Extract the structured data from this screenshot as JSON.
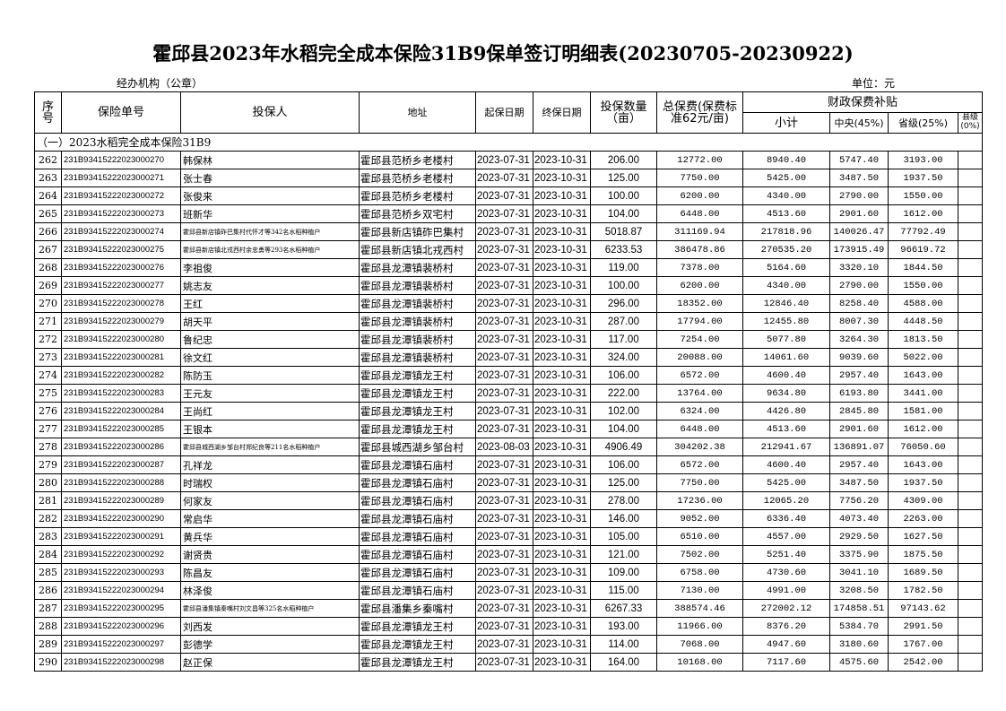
{
  "title": "霍邱县2023年水稻完全成本保险31B9保单签订明细表(20230705-20230922)",
  "subheader": {
    "agency": "经办机构（公章）",
    "unit": "单位：元"
  },
  "table": {
    "headers": {
      "seq": "序号",
      "policy_no": "保险单号",
      "insured": "投保人",
      "address": "地址",
      "start": "起保日期",
      "end": "终保日期",
      "quantity": "投保数量（亩）",
      "premium": "总保费(保费标准62元/亩)",
      "subsidy": "财政保费补贴",
      "subtotal": "小计",
      "central": "中央(45%)",
      "provincial": "省级(25%)",
      "county": "县级(0%)"
    },
    "section": "（一）2023水稻完全成本保险31B9",
    "rows": [
      [
        "262",
        "231B93415222023000270",
        "韩保林",
        "霍邱县范桥乡老楼村",
        "2023-07-31",
        "2023-10-31",
        "206.00",
        "12772.00",
        "8940.40",
        "5747.40",
        "3193.00"
      ],
      [
        "263",
        "231B93415222023000271",
        "张士春",
        "霍邱县范桥乡老楼村",
        "2023-07-31",
        "2023-10-31",
        "125.00",
        "7750.00",
        "5425.00",
        "3487.50",
        "1937.50"
      ],
      [
        "264",
        "231B93415222023000272",
        "张俊来",
        "霍邱县范桥乡老楼村",
        "2023-07-31",
        "2023-10-31",
        "100.00",
        "6200.00",
        "4340.00",
        "2790.00",
        "1550.00"
      ],
      [
        "265",
        "231B93415222023000273",
        "班新华",
        "霍邱县范桥乡双宅村",
        "2023-07-31",
        "2023-10-31",
        "104.00",
        "6448.00",
        "4513.60",
        "2901.60",
        "1612.00"
      ],
      [
        "266",
        "231B93415222023000274",
        "霍邱县新店镇砟巴集村代怀才等342名水稻种植户",
        "霍邱县新店镇砟巴集村",
        "2023-07-31",
        "2023-10-31",
        "5018.87",
        "311169.94",
        "217818.96",
        "140026.47",
        "77792.49"
      ],
      [
        "267",
        "231B93415222023000275",
        "霍邱县新店镇北戎西村余忠勇等293名水稻种植户",
        "霍邱县新店镇北戎西村",
        "2023-07-31",
        "2023-10-31",
        "6233.53",
        "386478.86",
        "270535.20",
        "173915.49",
        "96619.72"
      ],
      [
        "268",
        "231B93415222023000276",
        "李祖俊",
        "霍邱县龙潭镇裴桥村",
        "2023-07-31",
        "2023-10-31",
        "119.00",
        "7378.00",
        "5164.60",
        "3320.10",
        "1844.50"
      ],
      [
        "269",
        "231B93415222023000277",
        "姚志友",
        "霍邱县龙潭镇裴桥村",
        "2023-07-31",
        "2023-10-31",
        "100.00",
        "6200.00",
        "4340.00",
        "2790.00",
        "1550.00"
      ],
      [
        "270",
        "231B93415222023000278",
        "王红",
        "霍邱县龙潭镇裴桥村",
        "2023-07-31",
        "2023-10-31",
        "296.00",
        "18352.00",
        "12846.40",
        "8258.40",
        "4588.00"
      ],
      [
        "271",
        "231B93415222023000279",
        "胡天平",
        "霍邱县龙潭镇裴桥村",
        "2023-07-31",
        "2023-10-31",
        "287.00",
        "17794.00",
        "12455.80",
        "8007.30",
        "4448.50"
      ],
      [
        "272",
        "231B93415222023000280",
        "鲁纪忠",
        "霍邱县龙潭镇裴桥村",
        "2023-07-31",
        "2023-10-31",
        "117.00",
        "7254.00",
        "5077.80",
        "3264.30",
        "1813.50"
      ],
      [
        "273",
        "231B93415222023000281",
        "徐文红",
        "霍邱县龙潭镇裴桥村",
        "2023-07-31",
        "2023-10-31",
        "324.00",
        "20088.00",
        "14061.60",
        "9039.60",
        "5022.00"
      ],
      [
        "274",
        "231B93415222023000282",
        "陈防玉",
        "霍邱县龙潭镇龙王村",
        "2023-07-31",
        "2023-10-31",
        "106.00",
        "6572.00",
        "4600.40",
        "2957.40",
        "1643.00"
      ],
      [
        "275",
        "231B93415222023000283",
        "王元友",
        "霍邱县龙潭镇龙王村",
        "2023-07-31",
        "2023-10-31",
        "222.00",
        "13764.00",
        "9634.80",
        "6193.80",
        "3441.00"
      ],
      [
        "276",
        "231B93415222023000284",
        "王尚红",
        "霍邱县龙潭镇龙王村",
        "2023-07-31",
        "2023-10-31",
        "102.00",
        "6324.00",
        "4426.80",
        "2845.80",
        "1581.00"
      ],
      [
        "277",
        "231B93415222023000285",
        "王银本",
        "霍邱县龙潭镇龙王村",
        "2023-07-31",
        "2023-10-31",
        "104.00",
        "6448.00",
        "4513.60",
        "2901.60",
        "1612.00"
      ],
      [
        "278",
        "231B93415222023000286",
        "霍邱县城西湖乡邹台村郑纪良等211名水稻种植户",
        "霍邱县城西湖乡邹台村",
        "2023-08-03",
        "2023-10-31",
        "4906.49",
        "304202.38",
        "212941.67",
        "136891.07",
        "76050.60"
      ],
      [
        "279",
        "231B93415222023000287",
        "孔祥龙",
        "霍邱县龙潭镇石庙村",
        "2023-07-31",
        "2023-10-31",
        "106.00",
        "6572.00",
        "4600.40",
        "2957.40",
        "1643.00"
      ],
      [
        "280",
        "231B93415222023000288",
        "时瑞权",
        "霍邱县龙潭镇石庙村",
        "2023-07-31",
        "2023-10-31",
        "125.00",
        "7750.00",
        "5425.00",
        "3487.50",
        "1937.50"
      ],
      [
        "281",
        "231B93415222023000289",
        "何家友",
        "霍邱县龙潭镇石庙村",
        "2023-07-31",
        "2023-10-31",
        "278.00",
        "17236.00",
        "12065.20",
        "7756.20",
        "4309.00"
      ],
      [
        "282",
        "231B93415222023000290",
        "常启华",
        "霍邱县龙潭镇石庙村",
        "2023-07-31",
        "2023-10-31",
        "146.00",
        "9052.00",
        "6336.40",
        "4073.40",
        "2263.00"
      ],
      [
        "283",
        "231B93415222023000291",
        "黄兵华",
        "霍邱县龙潭镇石庙村",
        "2023-07-31",
        "2023-10-31",
        "105.00",
        "6510.00",
        "4557.00",
        "2929.50",
        "1627.50"
      ],
      [
        "284",
        "231B93415222023000292",
        "谢贤贵",
        "霍邱县龙潭镇石庙村",
        "2023-07-31",
        "2023-10-31",
        "121.00",
        "7502.00",
        "5251.40",
        "3375.90",
        "1875.50"
      ],
      [
        "285",
        "231B93415222023000293",
        "陈昌友",
        "霍邱县龙潭镇石庙村",
        "2023-07-31",
        "2023-10-31",
        "109.00",
        "6758.00",
        "4730.60",
        "3041.10",
        "1689.50"
      ],
      [
        "286",
        "231B93415222023000294",
        "林泽俊",
        "霍邱县龙潭镇石庙村",
        "2023-07-31",
        "2023-10-31",
        "115.00",
        "7130.00",
        "4991.00",
        "3208.50",
        "1782.50"
      ],
      [
        "287",
        "231B93415222023000295",
        "霍邱县潘集镇秦嘴村刘文昌等325名水稻种植户",
        "霍邱县潘集乡秦嘴村",
        "2023-07-31",
        "2023-10-31",
        "6267.33",
        "388574.46",
        "272002.12",
        "174858.51",
        "97143.62"
      ],
      [
        "288",
        "231B93415222023000296",
        "刘西发",
        "霍邱县龙潭镇龙王村",
        "2023-07-31",
        "2023-10-31",
        "193.00",
        "11966.00",
        "8376.20",
        "5384.70",
        "2991.50"
      ],
      [
        "289",
        "231B93415222023000297",
        "彭德学",
        "霍邱县龙潭镇龙王村",
        "2023-07-31",
        "2023-10-31",
        "114.00",
        "7068.00",
        "4947.60",
        "3180.60",
        "1767.00"
      ],
      [
        "290",
        "231B93415222023000298",
        "赵正保",
        "霍邱县龙潭镇龙王村",
        "2023-07-31",
        "2023-10-31",
        "164.00",
        "10168.00",
        "7117.60",
        "4575.60",
        "2542.00"
      ]
    ]
  }
}
